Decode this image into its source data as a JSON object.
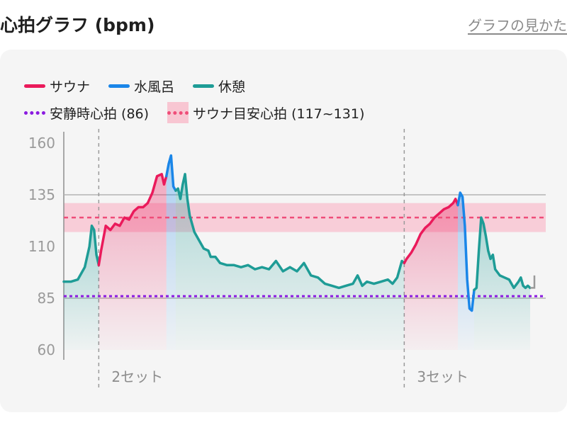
{
  "header": {
    "title": "心拍グラフ (bpm)",
    "help_link": "グラフの見かた"
  },
  "colors": {
    "sauna": "#ea1a5b",
    "cold_bath": "#1a86e8",
    "rest": "#1e9c96",
    "resting_line": "#8b1be0",
    "target_line": "#ef4d79",
    "target_band": "#f8c6d2"
  },
  "legend": {
    "sauna": "サウナ",
    "cold_bath": "水風呂",
    "rest": "休憩",
    "resting_hr": "安静時心拍 (86)",
    "target_hr": "サウナ目安心拍 (117~131)"
  },
  "chart_data": {
    "type": "line",
    "ylim": [
      60,
      160
    ],
    "yticks": [
      160,
      135,
      110,
      85,
      60
    ],
    "resting_hr": 86,
    "target_range": [
      117,
      131
    ],
    "set_markers": [
      {
        "label": "2セット",
        "x": 15
      },
      {
        "label": "3セット",
        "x": 146
      }
    ],
    "xlim": [
      0,
      200
    ],
    "segments": [
      {
        "phase": "rest",
        "points": [
          [
            0,
            93
          ],
          [
            3,
            93
          ],
          [
            6,
            94
          ],
          [
            9,
            100
          ],
          [
            11,
            110
          ],
          [
            12,
            120
          ],
          [
            13,
            118
          ],
          [
            14,
            106
          ],
          [
            15,
            101
          ]
        ]
      },
      {
        "phase": "sauna",
        "points": [
          [
            15,
            101
          ],
          [
            16,
            108
          ],
          [
            17,
            114
          ],
          [
            18,
            120
          ],
          [
            20,
            118
          ],
          [
            22,
            121
          ],
          [
            24,
            120
          ],
          [
            26,
            124
          ],
          [
            28,
            123
          ],
          [
            30,
            127
          ],
          [
            32,
            129
          ],
          [
            34,
            129
          ],
          [
            36,
            131
          ],
          [
            38,
            136
          ],
          [
            39,
            140
          ],
          [
            40,
            144
          ],
          [
            42,
            145
          ],
          [
            43,
            140
          ],
          [
            44,
            144
          ]
        ]
      },
      {
        "phase": "cold_bath",
        "points": [
          [
            44,
            144
          ],
          [
            45,
            150
          ],
          [
            46,
            154
          ],
          [
            47,
            139
          ],
          [
            48,
            137
          ]
        ]
      },
      {
        "phase": "rest",
        "points": [
          [
            48,
            137
          ],
          [
            49,
            138
          ],
          [
            50,
            133
          ],
          [
            51,
            140
          ],
          [
            52,
            145
          ],
          [
            53,
            133
          ],
          [
            54,
            125
          ],
          [
            55,
            121
          ],
          [
            56,
            117
          ],
          [
            58,
            113
          ],
          [
            60,
            109
          ],
          [
            62,
            108
          ],
          [
            63,
            105
          ],
          [
            65,
            105
          ],
          [
            67,
            102
          ],
          [
            70,
            101
          ],
          [
            73,
            101
          ],
          [
            76,
            100
          ],
          [
            79,
            101
          ],
          [
            82,
            99
          ],
          [
            85,
            100
          ],
          [
            88,
            99
          ],
          [
            91,
            103
          ],
          [
            94,
            98
          ],
          [
            97,
            100
          ],
          [
            100,
            98
          ],
          [
            103,
            102
          ],
          [
            106,
            96
          ],
          [
            109,
            95
          ],
          [
            112,
            92
          ],
          [
            115,
            91
          ],
          [
            118,
            90
          ],
          [
            121,
            91
          ],
          [
            124,
            92
          ],
          [
            126,
            96
          ],
          [
            128,
            91
          ],
          [
            130,
            93
          ],
          [
            133,
            92
          ],
          [
            136,
            93
          ],
          [
            139,
            94
          ],
          [
            141,
            92
          ],
          [
            143,
            95
          ],
          [
            145,
            103
          ],
          [
            146,
            102
          ]
        ]
      },
      {
        "phase": "sauna",
        "points": [
          [
            146,
            102
          ],
          [
            147,
            104
          ],
          [
            149,
            107
          ],
          [
            151,
            111
          ],
          [
            153,
            116
          ],
          [
            155,
            119
          ],
          [
            157,
            121
          ],
          [
            159,
            124
          ],
          [
            161,
            126
          ],
          [
            163,
            128
          ],
          [
            165,
            129
          ],
          [
            167,
            131
          ],
          [
            168,
            133
          ],
          [
            169,
            130
          ]
        ]
      },
      {
        "phase": "cold_bath",
        "points": [
          [
            169,
            130
          ],
          [
            170,
            136
          ],
          [
            171,
            134
          ],
          [
            172,
            120
          ],
          [
            173,
            94
          ],
          [
            174,
            80
          ],
          [
            175,
            79
          ],
          [
            176,
            89
          ]
        ]
      },
      {
        "phase": "rest",
        "points": [
          [
            176,
            89
          ],
          [
            177,
            90
          ],
          [
            178,
            108
          ],
          [
            179,
            124
          ],
          [
            180,
            121
          ],
          [
            181,
            115
          ],
          [
            182,
            108
          ],
          [
            183,
            104
          ],
          [
            184,
            106
          ],
          [
            185,
            99
          ],
          [
            187,
            96
          ],
          [
            189,
            95
          ],
          [
            191,
            94
          ],
          [
            193,
            90
          ],
          [
            195,
            93
          ],
          [
            196,
            95
          ],
          [
            197,
            91
          ],
          [
            198,
            90
          ],
          [
            199,
            91
          ],
          [
            200,
            90
          ]
        ]
      }
    ]
  }
}
